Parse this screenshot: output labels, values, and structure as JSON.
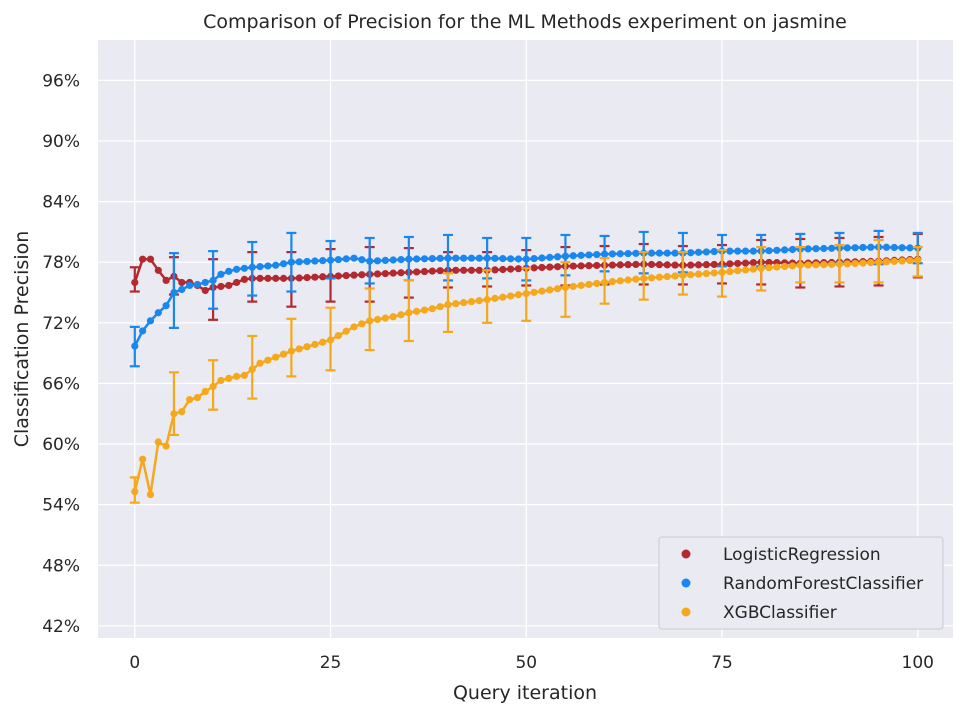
{
  "chart_data": {
    "type": "line",
    "title": "Comparison of Precision for the ML Methods experiment on jasmine",
    "xlabel": "Query iteration",
    "ylabel": "Classification Precision",
    "xlim": [
      -4.7,
      104.5
    ],
    "ylim": [
      0.408,
      1.0
    ],
    "xticks": [
      0,
      25,
      50,
      75,
      100
    ],
    "xtick_labels": [
      "0",
      "25",
      "50",
      "75",
      "100"
    ],
    "yticks": [
      0.42,
      0.48,
      0.54,
      0.6,
      0.66,
      0.72,
      0.78,
      0.84,
      0.9,
      0.96
    ],
    "ytick_labels": [
      "42%",
      "48%",
      "54%",
      "60%",
      "66%",
      "72%",
      "78%",
      "84%",
      "90%",
      "96%"
    ],
    "grid": true,
    "background": "#eaeaf2",
    "legend_position": "lower-right",
    "series": [
      {
        "name": "LogisticRegression",
        "color": "#b22a2f",
        "anchors": [
          [
            0,
            0.76
          ],
          [
            1,
            0.783
          ],
          [
            2,
            0.783
          ],
          [
            3,
            0.772
          ],
          [
            4,
            0.762
          ],
          [
            5,
            0.766
          ],
          [
            6,
            0.76
          ],
          [
            7,
            0.76
          ],
          [
            8,
            0.757
          ],
          [
            9,
            0.752
          ],
          [
            10,
            0.755
          ],
          [
            11,
            0.756
          ],
          [
            12,
            0.757
          ],
          [
            13,
            0.76
          ],
          [
            14,
            0.763
          ],
          [
            15,
            0.764
          ],
          [
            20,
            0.764
          ],
          [
            25,
            0.766
          ],
          [
            30,
            0.768
          ],
          [
            35,
            0.77
          ],
          [
            40,
            0.772
          ],
          [
            45,
            0.772
          ],
          [
            50,
            0.774
          ],
          [
            55,
            0.776
          ],
          [
            60,
            0.777
          ],
          [
            65,
            0.778
          ],
          [
            70,
            0.777
          ],
          [
            75,
            0.778
          ],
          [
            80,
            0.78
          ],
          [
            85,
            0.779
          ],
          [
            90,
            0.78
          ],
          [
            95,
            0.781
          ],
          [
            100,
            0.783
          ]
        ],
        "error_bars": [
          [
            0,
            0.775,
            0.751
          ],
          [
            5,
            0.785,
            0.748
          ],
          [
            10,
            0.783,
            0.723
          ],
          [
            15,
            0.79,
            0.741
          ],
          [
            20,
            0.79,
            0.736
          ],
          [
            25,
            0.793,
            0.741
          ],
          [
            30,
            0.795,
            0.741
          ],
          [
            35,
            0.794,
            0.745
          ],
          [
            40,
            0.79,
            0.755
          ],
          [
            45,
            0.79,
            0.756
          ],
          [
            50,
            0.792,
            0.757
          ],
          [
            55,
            0.795,
            0.757
          ],
          [
            60,
            0.796,
            0.758
          ],
          [
            65,
            0.798,
            0.758
          ],
          [
            70,
            0.796,
            0.758
          ],
          [
            75,
            0.797,
            0.759
          ],
          [
            80,
            0.802,
            0.758
          ],
          [
            85,
            0.803,
            0.755
          ],
          [
            90,
            0.804,
            0.756
          ],
          [
            95,
            0.805,
            0.757
          ],
          [
            100,
            0.808,
            0.765
          ]
        ]
      },
      {
        "name": "RandomForestClassifier",
        "color": "#1a87ef",
        "anchors": [
          [
            0,
            0.697
          ],
          [
            1,
            0.712
          ],
          [
            2,
            0.722
          ],
          [
            3,
            0.73
          ],
          [
            4,
            0.737
          ],
          [
            5,
            0.75
          ],
          [
            6,
            0.753
          ],
          [
            7,
            0.757
          ],
          [
            8,
            0.758
          ],
          [
            9,
            0.76
          ],
          [
            10,
            0.762
          ],
          [
            11,
            0.768
          ],
          [
            12,
            0.771
          ],
          [
            13,
            0.773
          ],
          [
            14,
            0.774
          ],
          [
            15,
            0.775
          ],
          [
            18,
            0.777
          ],
          [
            20,
            0.78
          ],
          [
            25,
            0.782
          ],
          [
            28,
            0.784
          ],
          [
            30,
            0.781
          ],
          [
            35,
            0.783
          ],
          [
            40,
            0.784
          ],
          [
            45,
            0.784
          ],
          [
            50,
            0.783
          ],
          [
            55,
            0.786
          ],
          [
            60,
            0.788
          ],
          [
            65,
            0.789
          ],
          [
            70,
            0.789
          ],
          [
            75,
            0.791
          ],
          [
            80,
            0.791
          ],
          [
            85,
            0.793
          ],
          [
            90,
            0.794
          ],
          [
            95,
            0.795
          ],
          [
            100,
            0.794
          ]
        ],
        "error_bars": [
          [
            0,
            0.716,
            0.677
          ],
          [
            5,
            0.789,
            0.715
          ],
          [
            10,
            0.791,
            0.734
          ],
          [
            15,
            0.8,
            0.747
          ],
          [
            20,
            0.809,
            0.751
          ],
          [
            25,
            0.801,
            0.764
          ],
          [
            30,
            0.804,
            0.759
          ],
          [
            35,
            0.805,
            0.762
          ],
          [
            40,
            0.807,
            0.762
          ],
          [
            45,
            0.804,
            0.764
          ],
          [
            50,
            0.804,
            0.762
          ],
          [
            55,
            0.807,
            0.767
          ],
          [
            60,
            0.806,
            0.771
          ],
          [
            65,
            0.81,
            0.769
          ],
          [
            70,
            0.809,
            0.77
          ],
          [
            75,
            0.807,
            0.776
          ],
          [
            80,
            0.807,
            0.776
          ],
          [
            85,
            0.808,
            0.778
          ],
          [
            90,
            0.809,
            0.78
          ],
          [
            95,
            0.811,
            0.778
          ],
          [
            100,
            0.809,
            0.779
          ]
        ]
      },
      {
        "name": "XGBClassifier",
        "color": "#f5a81c",
        "anchors": [
          [
            0,
            0.553
          ],
          [
            1,
            0.585
          ],
          [
            2,
            0.55
          ],
          [
            3,
            0.602
          ],
          [
            4,
            0.598
          ],
          [
            5,
            0.63
          ],
          [
            6,
            0.632
          ],
          [
            7,
            0.644
          ],
          [
            8,
            0.646
          ],
          [
            9,
            0.652
          ],
          [
            10,
            0.657
          ],
          [
            11,
            0.663
          ],
          [
            12,
            0.665
          ],
          [
            13,
            0.667
          ],
          [
            14,
            0.668
          ],
          [
            15,
            0.674
          ],
          [
            16,
            0.68
          ],
          [
            18,
            0.686
          ],
          [
            20,
            0.692
          ],
          [
            25,
            0.703
          ],
          [
            28,
            0.716
          ],
          [
            30,
            0.722
          ],
          [
            33,
            0.726
          ],
          [
            35,
            0.73
          ],
          [
            38,
            0.734
          ],
          [
            40,
            0.738
          ],
          [
            45,
            0.743
          ],
          [
            50,
            0.749
          ],
          [
            55,
            0.755
          ],
          [
            60,
            0.76
          ],
          [
            65,
            0.764
          ],
          [
            70,
            0.767
          ],
          [
            75,
            0.77
          ],
          [
            80,
            0.774
          ],
          [
            85,
            0.777
          ],
          [
            90,
            0.778
          ],
          [
            95,
            0.78
          ],
          [
            100,
            0.782
          ]
        ],
        "error_bars": [
          [
            0,
            0.567,
            0.542
          ],
          [
            5,
            0.671,
            0.609
          ],
          [
            10,
            0.683,
            0.634
          ],
          [
            15,
            0.707,
            0.645
          ],
          [
            20,
            0.724,
            0.667
          ],
          [
            25,
            0.735,
            0.673
          ],
          [
            30,
            0.754,
            0.693
          ],
          [
            35,
            0.762,
            0.702
          ],
          [
            40,
            0.769,
            0.711
          ],
          [
            45,
            0.772,
            0.72
          ],
          [
            50,
            0.774,
            0.722
          ],
          [
            55,
            0.78,
            0.726
          ],
          [
            60,
            0.784,
            0.739
          ],
          [
            65,
            0.79,
            0.743
          ],
          [
            70,
            0.79,
            0.748
          ],
          [
            75,
            0.792,
            0.746
          ],
          [
            80,
            0.795,
            0.752
          ],
          [
            85,
            0.795,
            0.76
          ],
          [
            90,
            0.797,
            0.76
          ],
          [
            95,
            0.802,
            0.76
          ],
          [
            100,
            0.795,
            0.766
          ]
        ]
      }
    ]
  }
}
